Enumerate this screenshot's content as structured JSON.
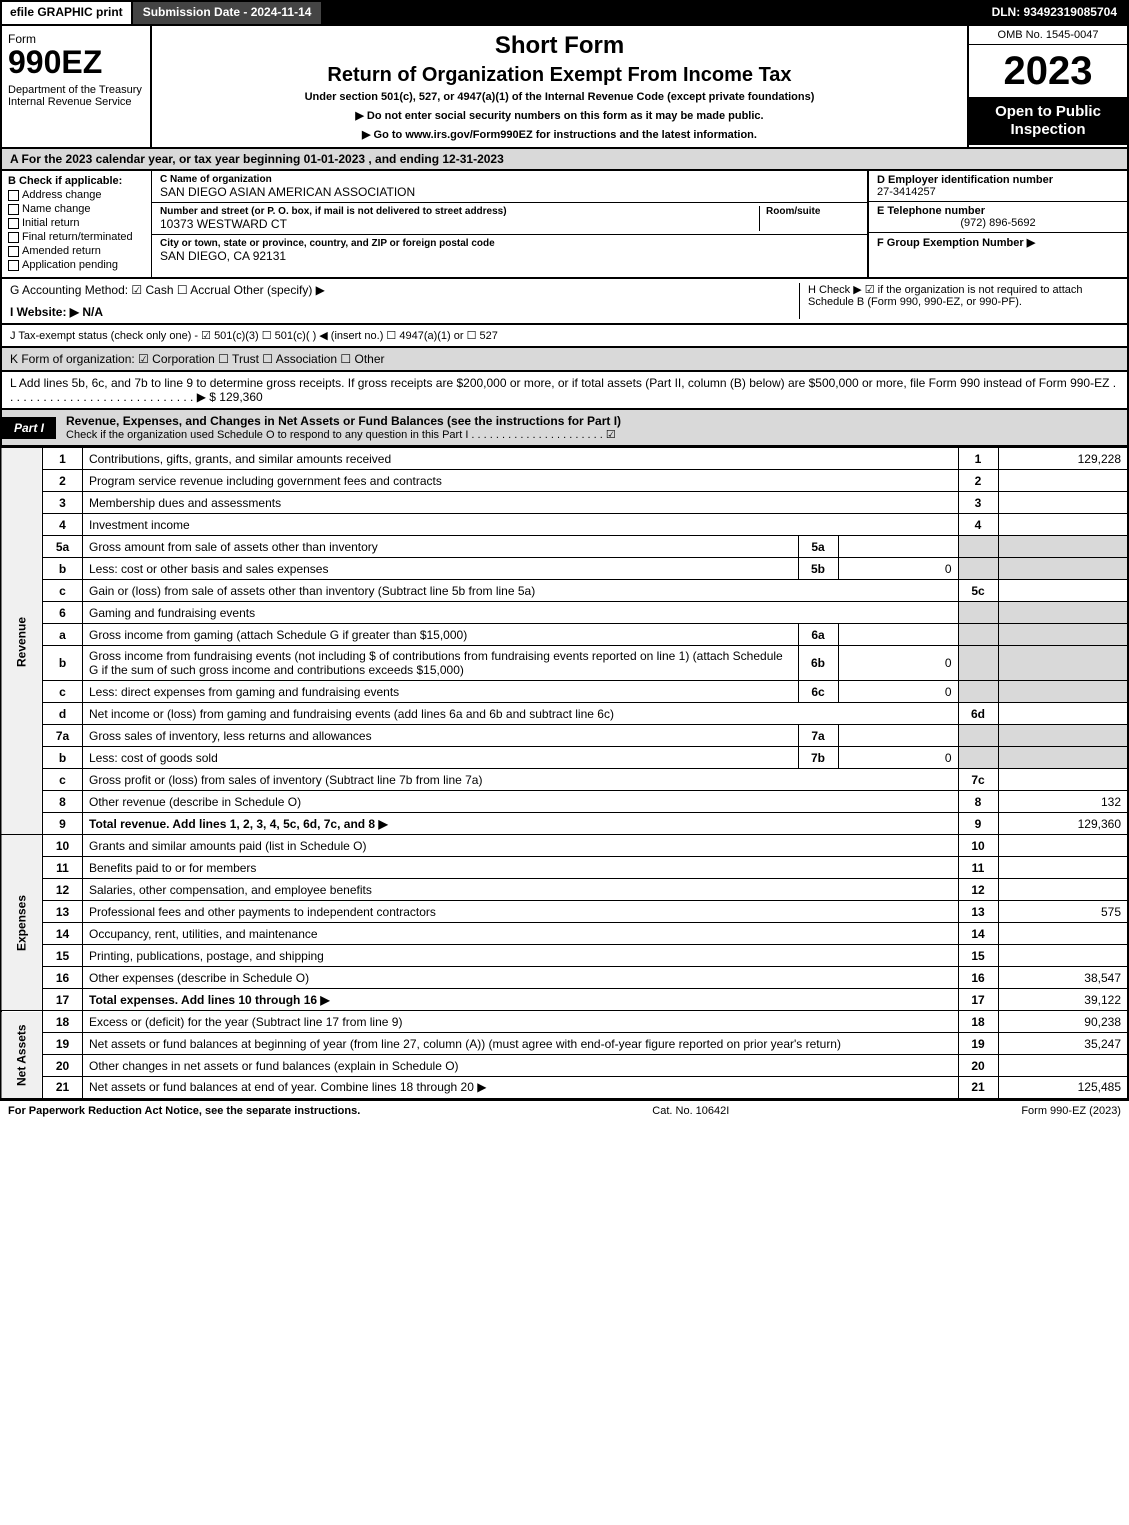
{
  "topbar": {
    "efile": "efile GRAPHIC print",
    "submission": "Submission Date - 2024-11-14",
    "dln": "DLN: 93492319085704"
  },
  "header": {
    "form_word": "Form",
    "form_num": "990EZ",
    "dept": "Department of the Treasury\nInternal Revenue Service",
    "title1": "Short Form",
    "title2": "Return of Organization Exempt From Income Tax",
    "subtitle": "Under section 501(c), 527, or 4947(a)(1) of the Internal Revenue Code (except private foundations)",
    "directive1": "▶ Do not enter social security numbers on this form as it may be made public.",
    "directive2": "▶ Go to www.irs.gov/Form990EZ for instructions and the latest information.",
    "omb": "OMB No. 1545-0047",
    "year": "2023",
    "inspection": "Open to Public Inspection"
  },
  "sectionA": "A  For the 2023 calendar year, or tax year beginning 01-01-2023 , and ending 12-31-2023",
  "sectionB": {
    "title": "B  Check if applicable:",
    "opts": [
      "Address change",
      "Name change",
      "Initial return",
      "Final return/terminated",
      "Amended return",
      "Application pending"
    ]
  },
  "sectionC": {
    "name_label": "C Name of organization",
    "name": "SAN DIEGO ASIAN AMERICAN ASSOCIATION",
    "addr_label": "Number and street (or P. O. box, if mail is not delivered to street address)",
    "room_label": "Room/suite",
    "addr": "10373 WESTWARD CT",
    "city_label": "City or town, state or province, country, and ZIP or foreign postal code",
    "city": "SAN DIEGO, CA  92131"
  },
  "sectionDE": {
    "d_label": "D Employer identification number",
    "d_val": "27-3414257",
    "e_label": "E Telephone number",
    "e_val": "(972) 896-5692",
    "f_label": "F Group Exemption Number ▶"
  },
  "ghi": {
    "g": "G Accounting Method:  ☑ Cash  ☐ Accrual  Other (specify) ▶",
    "i": "I Website: ▶ N/A",
    "h": "H  Check ▶ ☑ if the organization is not required to attach Schedule B (Form 990, 990-EZ, or 990-PF)."
  },
  "j": "J Tax-exempt status (check only one) - ☑ 501(c)(3)  ☐ 501(c)(  ) ◀ (insert no.)  ☐ 4947(a)(1) or  ☐ 527",
  "k": "K Form of organization:  ☑ Corporation  ☐ Trust  ☐ Association  ☐ Other",
  "l": {
    "text": "L Add lines 5b, 6c, and 7b to line 9 to determine gross receipts. If gross receipts are $200,000 or more, or if total assets (Part II, column (B) below) are $500,000 or more, file Form 990 instead of Form 990-EZ . . . . . . . . . . . . . . . . . . . . . . . . . . . . . ▶ $",
    "val": "129,360"
  },
  "part1": {
    "label": "Part I",
    "title": "Revenue, Expenses, and Changes in Net Assets or Fund Balances (see the instructions for Part I)",
    "sub": "Check if the organization used Schedule O to respond to any question in this Part I . . . . . . . . . . . . . . . . . . . . . . ☑"
  },
  "sections": {
    "revenue": "Revenue",
    "expenses": "Expenses",
    "netassets": "Net Assets"
  },
  "lines": [
    {
      "ln": "1",
      "desc": "Contributions, gifts, grants, and similar amounts received",
      "num": "1",
      "val": "129,228"
    },
    {
      "ln": "2",
      "desc": "Program service revenue including government fees and contracts",
      "num": "2",
      "val": ""
    },
    {
      "ln": "3",
      "desc": "Membership dues and assessments",
      "num": "3",
      "val": ""
    },
    {
      "ln": "4",
      "desc": "Investment income",
      "num": "4",
      "val": ""
    },
    {
      "ln": "5a",
      "desc": "Gross amount from sale of assets other than inventory",
      "sub_ln": "5a",
      "sub_val": "",
      "shade_right": true
    },
    {
      "ln": "b",
      "desc": "Less: cost or other basis and sales expenses",
      "sub_ln": "5b",
      "sub_val": "0",
      "shade_right": true
    },
    {
      "ln": "c",
      "desc": "Gain or (loss) from sale of assets other than inventory (Subtract line 5b from line 5a)",
      "num": "5c",
      "val": ""
    },
    {
      "ln": "6",
      "desc": "Gaming and fundraising events",
      "shade_right": true,
      "no_num": true
    },
    {
      "ln": "a",
      "desc": "Gross income from gaming (attach Schedule G if greater than $15,000)",
      "sub_ln": "6a",
      "sub_val": "",
      "shade_right": true
    },
    {
      "ln": "b",
      "desc": "Gross income from fundraising events (not including $            of contributions from fundraising events reported on line 1) (attach Schedule G if the sum of such gross income and contributions exceeds $15,000)",
      "sub_ln": "6b",
      "sub_val": "0",
      "shade_right": true
    },
    {
      "ln": "c",
      "desc": "Less: direct expenses from gaming and fundraising events",
      "sub_ln": "6c",
      "sub_val": "0",
      "shade_right": true
    },
    {
      "ln": "d",
      "desc": "Net income or (loss) from gaming and fundraising events (add lines 6a and 6b and subtract line 6c)",
      "num": "6d",
      "val": ""
    },
    {
      "ln": "7a",
      "desc": "Gross sales of inventory, less returns and allowances",
      "sub_ln": "7a",
      "sub_val": "",
      "shade_right": true
    },
    {
      "ln": "b",
      "desc": "Less: cost of goods sold",
      "sub_ln": "7b",
      "sub_val": "0",
      "shade_right": true
    },
    {
      "ln": "c",
      "desc": "Gross profit or (loss) from sales of inventory (Subtract line 7b from line 7a)",
      "num": "7c",
      "val": ""
    },
    {
      "ln": "8",
      "desc": "Other revenue (describe in Schedule O)",
      "num": "8",
      "val": "132"
    },
    {
      "ln": "9",
      "desc": "Total revenue. Add lines 1, 2, 3, 4, 5c, 6d, 7c, and 8",
      "num": "9",
      "val": "129,360",
      "bold": true,
      "arrow": true
    }
  ],
  "expense_lines": [
    {
      "ln": "10",
      "desc": "Grants and similar amounts paid (list in Schedule O)",
      "num": "10",
      "val": ""
    },
    {
      "ln": "11",
      "desc": "Benefits paid to or for members",
      "num": "11",
      "val": ""
    },
    {
      "ln": "12",
      "desc": "Salaries, other compensation, and employee benefits",
      "num": "12",
      "val": ""
    },
    {
      "ln": "13",
      "desc": "Professional fees and other payments to independent contractors",
      "num": "13",
      "val": "575"
    },
    {
      "ln": "14",
      "desc": "Occupancy, rent, utilities, and maintenance",
      "num": "14",
      "val": ""
    },
    {
      "ln": "15",
      "desc": "Printing, publications, postage, and shipping",
      "num": "15",
      "val": ""
    },
    {
      "ln": "16",
      "desc": "Other expenses (describe in Schedule O)",
      "num": "16",
      "val": "38,547"
    },
    {
      "ln": "17",
      "desc": "Total expenses. Add lines 10 through 16",
      "num": "17",
      "val": "39,122",
      "bold": true,
      "arrow": true
    }
  ],
  "netasset_lines": [
    {
      "ln": "18",
      "desc": "Excess or (deficit) for the year (Subtract line 17 from line 9)",
      "num": "18",
      "val": "90,238"
    },
    {
      "ln": "19",
      "desc": "Net assets or fund balances at beginning of year (from line 27, column (A)) (must agree with end-of-year figure reported on prior year's return)",
      "num": "19",
      "val": "35,247"
    },
    {
      "ln": "20",
      "desc": "Other changes in net assets or fund balances (explain in Schedule O)",
      "num": "20",
      "val": ""
    },
    {
      "ln": "21",
      "desc": "Net assets or fund balances at end of year. Combine lines 18 through 20",
      "num": "21",
      "val": "125,485",
      "arrow": true
    }
  ],
  "footer": {
    "left": "For Paperwork Reduction Act Notice, see the separate instructions.",
    "center": "Cat. No. 10642I",
    "right": "Form 990-EZ (2023)"
  }
}
